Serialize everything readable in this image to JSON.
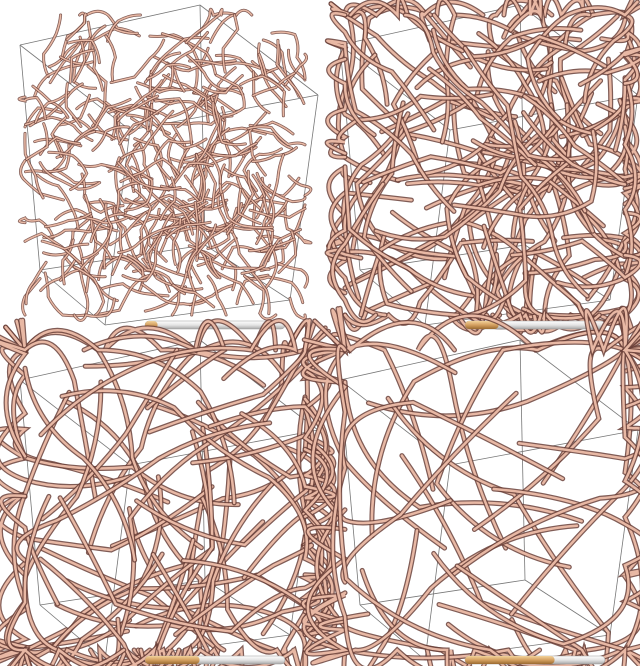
{
  "panels": [
    {
      "progress": 9
    },
    {
      "progress": 24
    },
    {
      "progress": 39
    },
    {
      "progress": 64
    }
  ]
}
